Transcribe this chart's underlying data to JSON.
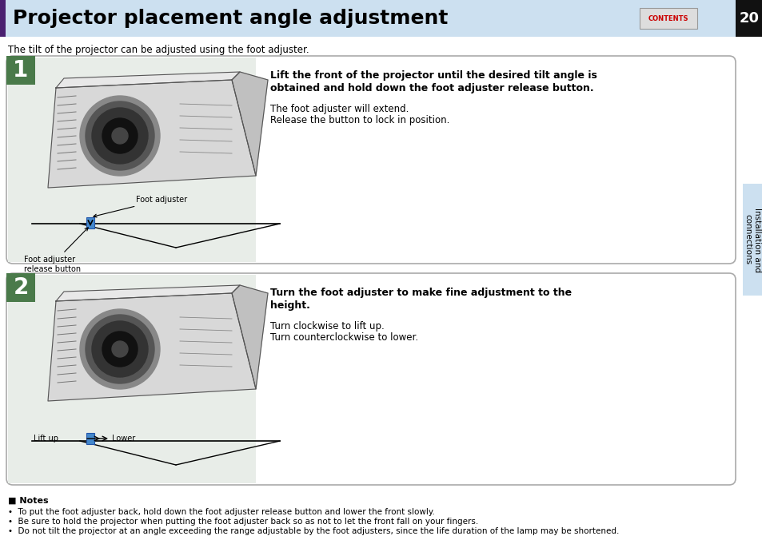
{
  "title": "Projector placement angle adjustment",
  "page_num": "20",
  "subtitle": "The tilt of the projector can be adjusted using the foot adjuster.",
  "header_bg": "#cce0f0",
  "header_accent": "#4a2070",
  "black_bar": "#111111",
  "contents_label": "CONTENTS",
  "sidebar_label": "Installation and\nconnections",
  "sidebar_bg": "#cce0f0",
  "box_border": "#aaaaaa",
  "box_inner_bg": "#e8ede8",
  "step1_num": "1",
  "step1_title_bold": "Lift the front of the projector until the desired tilt angle is\nobtained and hold down the foot adjuster release button.",
  "step1_body1": "The foot adjuster will extend.",
  "step1_body2": "Release the button to lock in position.",
  "step1_label1": "Foot adjuster\nrelease button",
  "step1_label2": "Foot adjuster",
  "step2_num": "2",
  "step2_title_line1": "Turn the foot adjuster to make fine adjustment to the",
  "step2_title_line2": "height.",
  "step2_body1": "Turn clockwise to lift up.",
  "step2_body2": "Turn counterclockwise to lower.",
  "step2_label1": "Lift up",
  "step2_label2": "Lower",
  "notes_title": "Notes",
  "note1": "To put the foot adjuster back, hold down the foot adjuster release button and lower the front slowly.",
  "note2": "Be sure to hold the projector when putting the foot adjuster back so as not to let the front fall on your fingers.",
  "note3": "Do not tilt the projector at an angle exceeding the range adjustable by the foot adjusters, since the life duration of the lamp may be shortened.",
  "step_num_bg": "#4a7a4a",
  "step1_title_line1": "Lift the front of the projector until the desired tilt angle is",
  "step1_title_line2": "obtained and hold down the foot adjuster release button."
}
